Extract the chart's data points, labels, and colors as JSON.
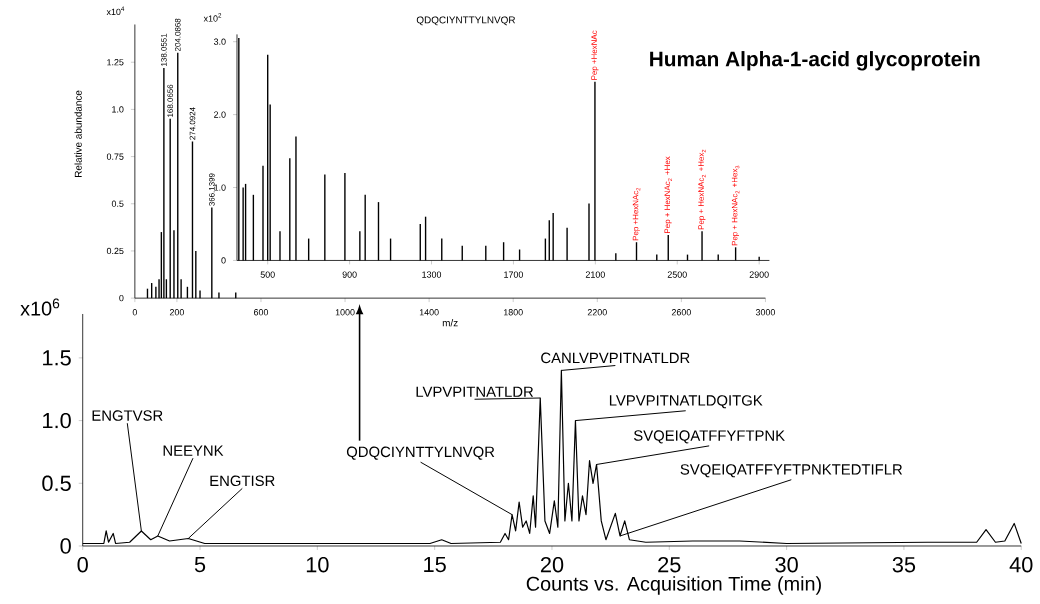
{
  "chart_data": [
    {
      "type": "line",
      "title": "Human Alpha-1-acid glycoprotein",
      "xlabel": "Counts vs. Acquisition Time (min)",
      "ylabel": "x10$^{6}$",
      "color": "#000000",
      "x": [
        0,
        0.9,
        1.0,
        1.1,
        1.3,
        1.4,
        2.0,
        2.5,
        2.9,
        3.2,
        3.7,
        4.5,
        5.2,
        10,
        14.8,
        15.3,
        15.7,
        17.8,
        18.0,
        18.15,
        18.3,
        18.45,
        18.6,
        18.75,
        18.9,
        19.05,
        19.2,
        19.3,
        19.5,
        19.7,
        19.9,
        20.1,
        20.25,
        20.4,
        20.55,
        20.7,
        20.85,
        21.0,
        21.15,
        21.3,
        21.45,
        21.6,
        21.75,
        21.9,
        22.1,
        22.3,
        22.7,
        22.9,
        23.1,
        23.3,
        24,
        26,
        28,
        30,
        36,
        38.1,
        38.5,
        38.9,
        39.3,
        39.7,
        40
      ],
      "values": [
        0.02,
        0.02,
        0.12,
        0.03,
        0.1,
        0.02,
        0.03,
        0.12,
        0.05,
        0.08,
        0.04,
        0.06,
        0.02,
        0.02,
        0.02,
        0.05,
        0.02,
        0.03,
        0.1,
        0.05,
        0.25,
        0.12,
        0.35,
        0.15,
        0.2,
        0.1,
        0.4,
        0.15,
        1.18,
        0.2,
        0.1,
        0.36,
        0.15,
        1.4,
        0.2,
        0.5,
        0.2,
        1.0,
        0.2,
        0.4,
        0.25,
        0.68,
        0.5,
        0.65,
        0.2,
        0.05,
        0.26,
        0.08,
        0.2,
        0.05,
        0.03,
        0.04,
        0.04,
        0.02,
        0.03,
        0.03,
        0.13,
        0.03,
        0.04,
        0.18,
        0.02
      ],
      "xlim": [
        0,
        40
      ],
      "ylim": [
        0,
        1.85
      ],
      "xticks": [
        0,
        5,
        10,
        15,
        20,
        25,
        30,
        35,
        40
      ],
      "yticks": [
        0,
        0.5,
        {
          "value": 1.0,
          "label": "1.0"
        },
        1.5
      ],
      "annotations": [
        {
          "text": "ENGTVSR",
          "x": 2.5,
          "y": 0.12
        },
        {
          "text": "NEEYNK",
          "x": 3.2,
          "y": 0.08
        },
        {
          "text": "ENGTISR",
          "x": 4.5,
          "y": 0.06
        },
        {
          "text": "QDQCIYNTTYLNVQR",
          "x": 18.3,
          "y": 0.25
        },
        {
          "text": "LVPVPITNATLDR",
          "x": 19.5,
          "y": 1.18
        },
        {
          "text": "CANLVPVPITNATLDR",
          "x": 20.4,
          "y": 1.4
        },
        {
          "text": "LVPVPITNATLDQITGK",
          "x": 21.0,
          "y": 1.0
        },
        {
          "text": "SVQEIQATFFYFTPNK",
          "x": 21.9,
          "y": 0.65
        },
        {
          "text": "SVQEIQATFFYFTPNKTEDTIFLR",
          "x": 22.9,
          "y": 0.08
        }
      ]
    },
    {
      "type": "bar",
      "xlabel": "m/z",
      "ylabel": "Relative abundance",
      "color": "#000000",
      "x": [
        0,
        60,
        80,
        100,
        115,
        126,
        138.0551,
        150,
        168.0656,
        186,
        204.0868,
        220,
        250,
        274.0924,
        290,
        310,
        366.1399,
        400,
        480
      ],
      "values": [
        0,
        0.05,
        0.08,
        0.06,
        0.1,
        0.35,
        1.22,
        0.1,
        0.95,
        0.36,
        1.3,
        0.1,
        0.06,
        0.83,
        0.25,
        0.04,
        0.48,
        0.03,
        0.03
      ],
      "xlim": [
        0,
        3000
      ],
      "ylim": [
        0,
        1.45
      ],
      "xticks": [
        0,
        200,
        600,
        1000,
        1400,
        1800,
        2200,
        2600,
        3000
      ],
      "yticks": [
        0,
        0.25,
        0.5,
        0.75,
        {
          "value": 1.0,
          "label": "1.0"
        },
        1.25
      ],
      "annotations": [
        "x10$^{4}$",
        {
          "text": "138.0551",
          "x": 138.0551,
          "y": 1.22
        },
        {
          "text": "168.0656",
          "x": 168.0656,
          "y": 0.95
        },
        {
          "text": "204.0868",
          "x": 204.0868,
          "y": 1.3
        },
        {
          "text": "274.0924",
          "x": 274.0924,
          "y": 0.83
        },
        {
          "text": "366.1399",
          "x": 366.1399,
          "y": 0.48
        }
      ]
    },
    {
      "type": "bar",
      "ylabel": "x10$^{2}$",
      "color": "#000000",
      "x": [
        359,
        380,
        392,
        430,
        477,
        500,
        512,
        560,
        608,
        638,
        700,
        779,
        877,
        950,
        976,
        1041,
        1100,
        1245,
        1271,
        1350,
        1450,
        1565,
        1652,
        1730,
        1856,
        1875,
        1894,
        1962,
        2069,
        2098,
        2200,
        2301,
        2400,
        2456,
        2550,
        2621,
        2700,
        2785,
        2900
      ],
      "values": [
        3.05,
        1.0,
        1.05,
        0.9,
        1.3,
        2.82,
        2.14,
        0.4,
        1.4,
        1.7,
        0.3,
        1.18,
        1.2,
        0.4,
        0.9,
        0.8,
        0.3,
        0.5,
        0.6,
        0.3,
        0.2,
        0.2,
        0.25,
        0.15,
        0.3,
        0.55,
        0.65,
        0.45,
        0.78,
        2.45,
        0.1,
        0.25,
        0.08,
        0.35,
        0.08,
        0.4,
        0.08,
        0.18,
        0.05
      ],
      "xlim": [
        350,
        2950
      ],
      "ylim": [
        0,
        3.1
      ],
      "xticks": [
        500,
        900,
        1300,
        1700,
        2100,
        2500,
        2900
      ],
      "yticks": [
        0,
        {
          "value": 1.0,
          "label": "1.0"
        },
        {
          "value": 2.0,
          "label": "2.0"
        },
        {
          "value": 3.0,
          "label": "3.0"
        }
      ],
      "annotations": [
        "QDQCIYNTTYLNVQR",
        {
          "text": "Pep +HexNAc",
          "x": 2098,
          "y": 2.45
        },
        {
          "text": "Pep +HexNAc$_{2}$",
          "x": 2301,
          "y": 0.25
        },
        {
          "text": "Pep + HexNAc$_{2}$ +Hex",
          "x": 2456,
          "y": 0.35
        },
        {
          "text": "Pep + HexNAc$_{2}$ +Hex$_{2}$",
          "x": 2621,
          "y": 0.4
        },
        {
          "text": "Pep + HexNAc$_{2}$ +Hex$_{3}$",
          "x": 2785,
          "y": 0.18
        }
      ]
    }
  ]
}
